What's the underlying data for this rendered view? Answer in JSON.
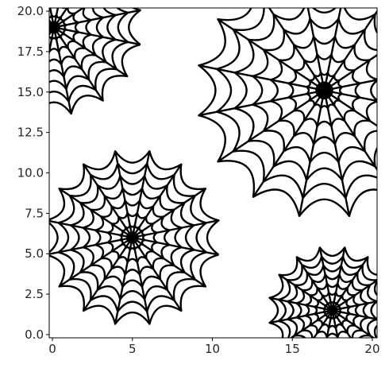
{
  "chart_data": {
    "type": "scatter",
    "title": "",
    "xlabel": "",
    "ylabel": "",
    "xlim": [
      -0.2,
      20.3
    ],
    "ylim": [
      -0.2,
      20.2
    ],
    "grid": false,
    "legend": "none",
    "marker": "spider-web",
    "marker_color": "#000000",
    "x_ticks": [
      {
        "value": 0,
        "label": "0"
      },
      {
        "value": 5,
        "label": "5"
      },
      {
        "value": 10,
        "label": "10"
      },
      {
        "value": 15,
        "label": "15"
      },
      {
        "value": 20,
        "label": "20"
      }
    ],
    "y_ticks": [
      {
        "value": 0.0,
        "label": "0.0"
      },
      {
        "value": 2.5,
        "label": "2.5"
      },
      {
        "value": 5.0,
        "label": "5.0"
      },
      {
        "value": 7.5,
        "label": "7.5"
      },
      {
        "value": 10.0,
        "label": "10.0"
      },
      {
        "value": 12.5,
        "label": "12.5"
      },
      {
        "value": 15.0,
        "label": "15.0"
      },
      {
        "value": 17.5,
        "label": "17.5"
      },
      {
        "value": 20.0,
        "label": "20.0"
      }
    ],
    "points": [
      {
        "x": 0.1,
        "y": 19.0,
        "size": 5.5
      },
      {
        "x": 17.0,
        "y": 15.1,
        "size": 8.0
      },
      {
        "x": 5.0,
        "y": 6.0,
        "size": 5.5
      },
      {
        "x": 17.5,
        "y": 1.5,
        "size": 4.0
      }
    ]
  }
}
